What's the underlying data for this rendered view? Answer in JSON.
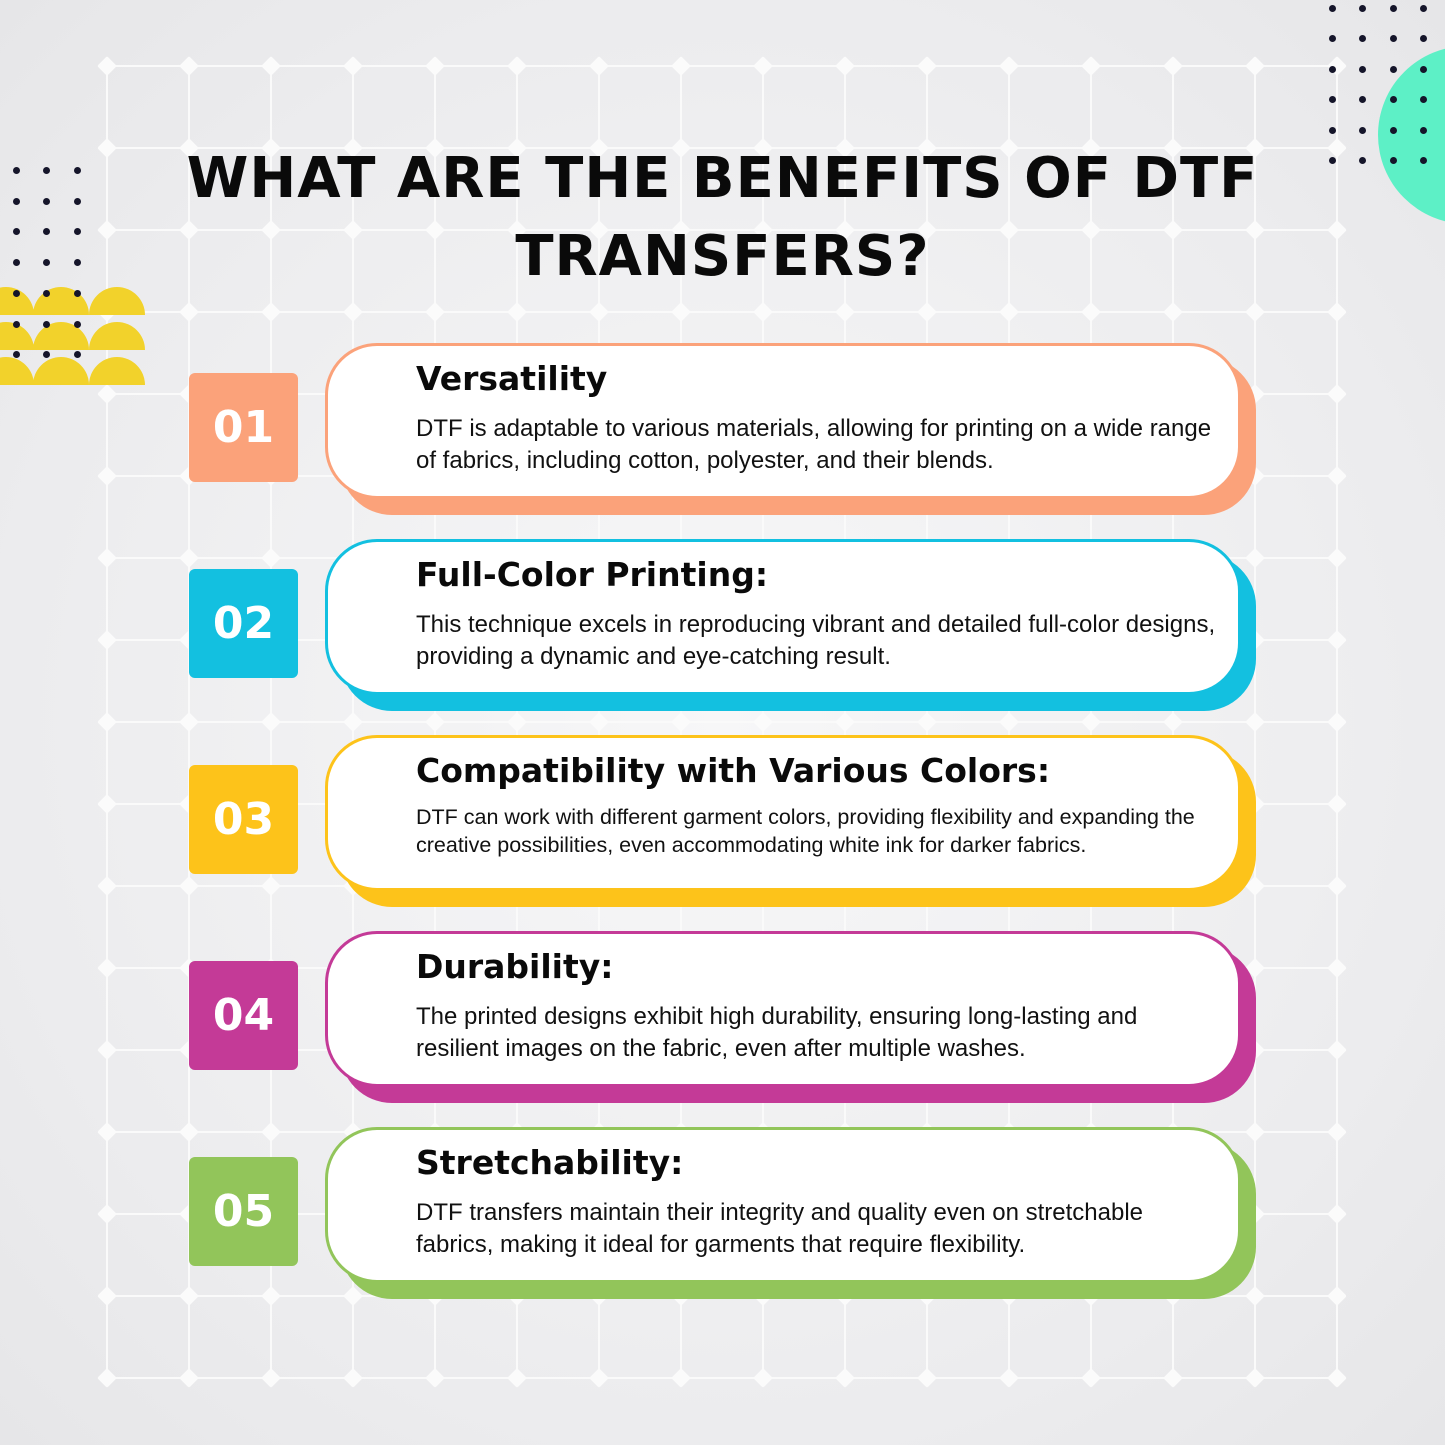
{
  "title": "WHAT ARE THE BENEFITS OF DTF TRANSFERS?",
  "colors": {
    "orange": "#FBA27A",
    "cyan": "#13C0E0",
    "yellow": "#FDC31A",
    "magenta": "#C43A97",
    "green": "#92C55A",
    "teal": "#5DF0C6",
    "dots": "#15152A"
  },
  "items": [
    {
      "number": "01",
      "heading": "Versatility",
      "text": "DTF is adaptable to various materials, allowing for printing on a wide range of fabrics, including cotton, polyester, and their blends.",
      "color": "#FBA27A"
    },
    {
      "number": "02",
      "heading": "Full-Color Printing:",
      "text": "This technique excels in reproducing vibrant and detailed full-color designs, providing a dynamic and eye-catching result.",
      "color": "#13C0E0"
    },
    {
      "number": "03",
      "heading": "Compatibility with Various Colors:",
      "text": "DTF can work with different garment colors, providing flexibility and expanding the creative possibilities, even accommodating white ink for darker fabrics.",
      "color": "#FDC31A"
    },
    {
      "number": "04",
      "heading": "Durability:",
      "text": "The printed designs exhibit high durability, ensuring long-lasting and resilient images on the fabric, even after multiple washes.",
      "color": "#C43A97"
    },
    {
      "number": "05",
      "heading": "Stretchability:",
      "text": "DTF transfers maintain their integrity and quality even on stretchable fabrics, making it ideal for garments that require flexibility.",
      "color": "#92C55A"
    }
  ]
}
